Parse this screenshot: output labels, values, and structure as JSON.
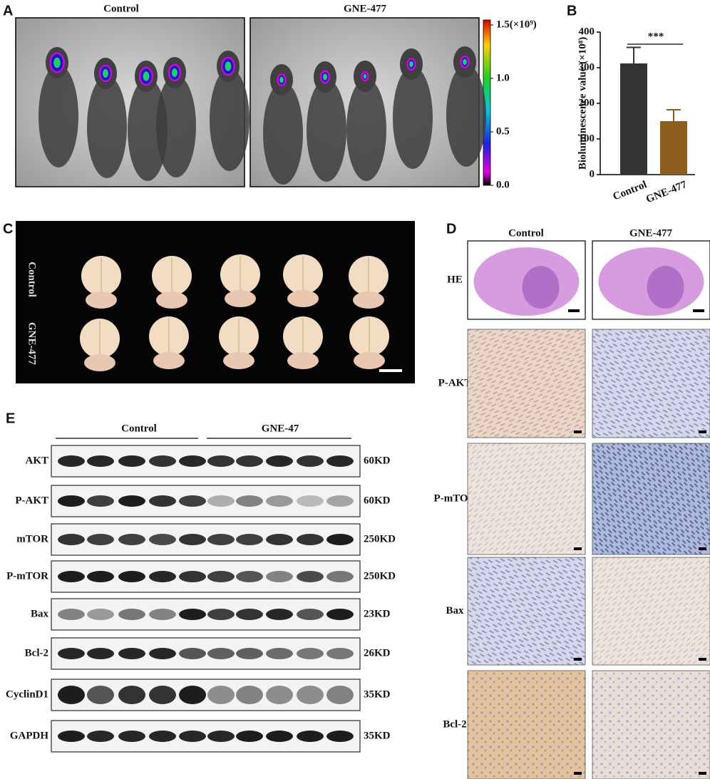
{
  "panel_a": {
    "label": "A",
    "groups": [
      "Control",
      "GNE-477"
    ],
    "colorbar": {
      "ticks": [
        {
          "value": 1.5,
          "label": "1.5(×10⁹)"
        },
        {
          "value": 1.0,
          "label": "1.0"
        },
        {
          "value": 0.5,
          "label": "0.5"
        },
        {
          "value": 0,
          "label": "0.0"
        }
      ]
    }
  },
  "chart_data": {
    "type": "bar",
    "panel_label": "B",
    "ylabel": "Bioluminescence value (×10⁸)",
    "categories": [
      "Control",
      "GNE-477"
    ],
    "values": [
      312,
      150
    ],
    "errors": [
      45,
      32
    ],
    "colors": [
      "#333333",
      "#8b5e1e"
    ],
    "ylim": [
      0,
      400
    ],
    "yticks": [
      0,
      100,
      200,
      300,
      400
    ],
    "annotation": "***"
  },
  "panel_c": {
    "label": "C",
    "rows": [
      "Control",
      "GNE-477"
    ]
  },
  "panel_d": {
    "label": "D",
    "columns": [
      "Control",
      "GNE-477"
    ],
    "rows": [
      "HE",
      "P-AKT",
      "P-mTOR",
      "Bax",
      "Bcl-2"
    ]
  },
  "panel_e": {
    "label": "E",
    "groups": [
      "Control",
      "GNE-47"
    ],
    "rows": [
      {
        "protein": "AKT",
        "size": "60KD"
      },
      {
        "protein": "P-AKT",
        "size": "60KD"
      },
      {
        "protein": "mTOR",
        "size": "250KD"
      },
      {
        "protein": "P-mTOR",
        "size": "250KD"
      },
      {
        "protein": "Bax",
        "size": "23KD"
      },
      {
        "protein": "Bcl-2",
        "size": "26KD"
      },
      {
        "protein": "CyclinD1",
        "size": "35KD"
      },
      {
        "protein": "GAPDH",
        "size": "35KD"
      }
    ]
  }
}
